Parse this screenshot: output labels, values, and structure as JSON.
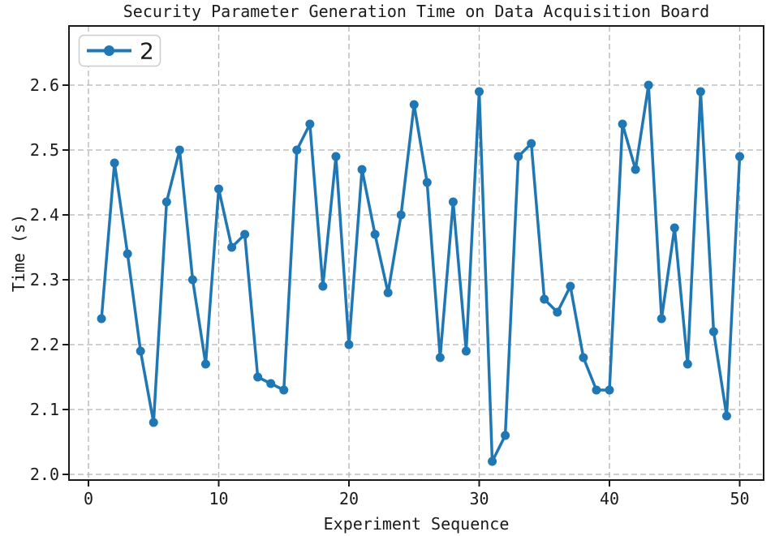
{
  "chart_data": {
    "type": "line",
    "title": "Security Parameter Generation Time on Data Acquisition Board",
    "xlabel": "Experiment Sequence",
    "ylabel": "Time (s)",
    "legend": [
      "2"
    ],
    "legend_position": "upper left",
    "grid": "dashed",
    "line_color": "#1f77b4",
    "grid_color": "#b4b4b4",
    "spine_color": "#1a1a1a",
    "marker": "circle",
    "x": [
      1,
      2,
      3,
      4,
      5,
      6,
      7,
      8,
      9,
      10,
      11,
      12,
      13,
      14,
      15,
      16,
      17,
      18,
      19,
      20,
      21,
      22,
      23,
      24,
      25,
      26,
      27,
      28,
      29,
      30,
      31,
      32,
      33,
      34,
      35,
      36,
      37,
      38,
      39,
      40,
      41,
      42,
      43,
      44,
      45,
      46,
      47,
      48,
      49,
      50
    ],
    "y": [
      2.24,
      2.48,
      2.34,
      2.19,
      2.08,
      2.42,
      2.5,
      2.3,
      2.17,
      2.44,
      2.35,
      2.37,
      2.15,
      2.14,
      2.13,
      2.5,
      2.54,
      2.29,
      2.49,
      2.2,
      2.47,
      2.37,
      2.28,
      2.4,
      2.57,
      2.45,
      2.18,
      2.42,
      2.19,
      2.59,
      2.02,
      2.06,
      2.49,
      2.51,
      2.27,
      2.25,
      2.29,
      2.18,
      2.13,
      2.13,
      2.54,
      2.47,
      2.6,
      2.24,
      2.38,
      2.17,
      2.59,
      2.22,
      2.09,
      2.49
    ],
    "xticks": [
      0,
      10,
      20,
      30,
      40,
      50
    ],
    "xtick_labels": [
      "0",
      "10",
      "20",
      "30",
      "40",
      "50"
    ],
    "yticks": [
      2.0,
      2.1,
      2.2,
      2.3,
      2.4,
      2.5,
      2.6
    ],
    "ytick_labels": [
      "2.0",
      "2.1",
      "2.2",
      "2.3",
      "2.4",
      "2.5",
      "2.6"
    ],
    "xlim": [
      -1.5,
      51.9
    ],
    "ylim": [
      1.99,
      2.69
    ]
  }
}
